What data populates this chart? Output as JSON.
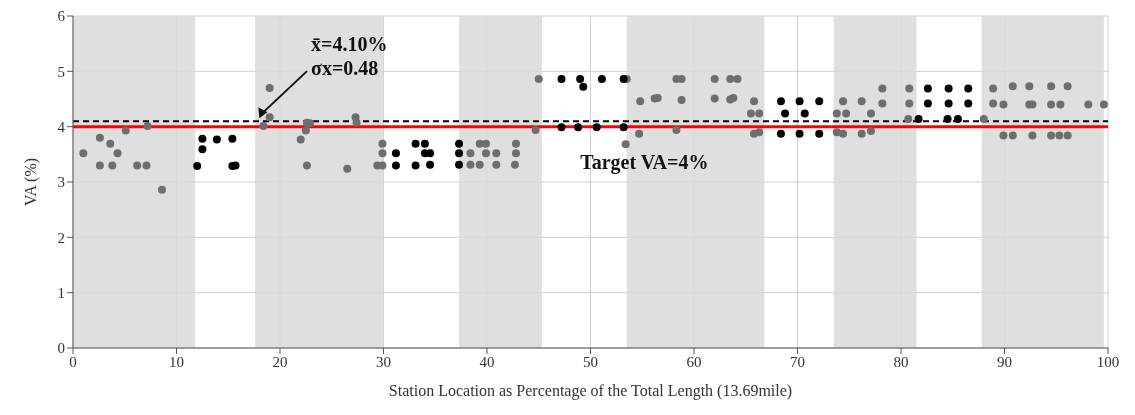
{
  "chart_data": {
    "type": "scatter",
    "xlabel": "Station Location as Percentage of the Total Length (13.69mile)",
    "ylabel": "VA (%)",
    "xlim": [
      0,
      100
    ],
    "xticks": [
      0,
      10,
      20,
      30,
      40,
      50,
      60,
      70,
      80,
      90,
      100
    ],
    "ylim": [
      0,
      6
    ],
    "yticks": [
      0,
      1,
      2,
      3,
      4,
      5,
      6
    ],
    "grid": true,
    "marker": "circle",
    "legend": false,
    "annotations": [
      "σx=0.48"
    ],
    "ref_lines": [
      {
        "axis": "y",
        "value": 4.1,
        "label": "x̄=4.10%",
        "color": "#000000",
        "line_style": "dashed"
      },
      {
        "axis": "y",
        "value": 4,
        "label": "Target VA=4%",
        "color": "#ff0000",
        "line_style": "solid"
      }
    ],
    "bands": [
      {
        "axis": "x",
        "from": 0,
        "to": 11.8,
        "color": "#d9d9d9"
      },
      {
        "axis": "x",
        "from": 17.6,
        "to": 30,
        "color": "#d9d9d9"
      },
      {
        "axis": "x",
        "from": 37.3,
        "to": 45.3,
        "color": "#d9d9d9"
      },
      {
        "axis": "x",
        "from": 53.5,
        "to": 66.8,
        "color": "#d9d9d9"
      },
      {
        "axis": "x",
        "from": 73.5,
        "to": 81.5,
        "color": "#d9d9d9"
      },
      {
        "axis": "x",
        "from": 87.8,
        "to": 99.6,
        "color": "#d9d9d9"
      }
    ],
    "series": [
      {
        "color": "#6e6e6e",
        "x": [
          1.0,
          2.6,
          2.6,
          3.6,
          3.8,
          4.3,
          5.1,
          6.2,
          7.1,
          7.2,
          8.6,
          18.4,
          19.0,
          19.0,
          22.0,
          22.5,
          22.6,
          22.6,
          22.9,
          26.5,
          27.3,
          27.4,
          29.4,
          29.9,
          29.9,
          29.9,
          38.4,
          38.4,
          39.3,
          39.9,
          39.3,
          39.9,
          40.9,
          40.9,
          42.8,
          42.8,
          42.7,
          44.7,
          45.0,
          53.4,
          53.5,
          54.7,
          54.8,
          56.2,
          56.5,
          58.3,
          58.3,
          58.8,
          58.8,
          62.0,
          62.0,
          63.5,
          63.5,
          63.8,
          64.2,
          65.5,
          65.8,
          65.8,
          66.3,
          66.3,
          73.8,
          73.8,
          74.4,
          74.4,
          74.7,
          76.2,
          76.2,
          77.1,
          77.1,
          78.2,
          78.2,
          80.7,
          80.8,
          80.8,
          88.0,
          88.9,
          88.9,
          89.9,
          89.9,
          90.8,
          90.8,
          92.4,
          92.4,
          92.7,
          92.7,
          94.5,
          94.5,
          94.5,
          95.3,
          95.4,
          96.1,
          96.1,
          98.1,
          99.6
        ],
        "values": [
          3.52,
          3.8,
          3.3,
          3.69,
          3.3,
          3.52,
          3.93,
          3.3,
          3.3,
          4.01,
          2.86,
          4.01,
          4.17,
          4.7,
          3.77,
          3.93,
          4.07,
          3.3,
          4.06,
          3.24,
          4.17,
          4.07,
          3.3,
          3.3,
          3.52,
          3.69,
          3.52,
          3.31,
          3.69,
          3.69,
          3.31,
          3.52,
          3.52,
          3.31,
          3.69,
          3.52,
          3.31,
          3.94,
          4.86,
          3.68,
          4.86,
          3.87,
          4.46,
          4.51,
          4.52,
          4.86,
          3.94,
          4.86,
          4.48,
          4.86,
          4.51,
          4.86,
          4.49,
          4.52,
          4.86,
          4.24,
          4.46,
          3.87,
          4.24,
          3.9,
          4.24,
          3.9,
          4.46,
          3.87,
          4.24,
          4.46,
          3.87,
          4.24,
          3.92,
          4.69,
          4.42,
          4.14,
          4.69,
          4.42,
          4.14,
          4.69,
          4.42,
          4.4,
          3.84,
          4.73,
          3.84,
          4.73,
          4.4,
          4.4,
          3.84,
          4.73,
          4.4,
          3.84,
          3.84,
          4.4,
          4.73,
          3.84,
          4.4,
          4.4
        ]
      },
      {
        "color": "#000000",
        "x": [
          12.0,
          12.5,
          12.5,
          13.9,
          15.4,
          15.4,
          15.7,
          31.2,
          31.2,
          33.1,
          33.1,
          34.0,
          34.0,
          34.5,
          34.5,
          37.3,
          37.3,
          37.3,
          47.2,
          47.2,
          48.8,
          49.0,
          49.3,
          50.6,
          51.1,
          53.2,
          53.2,
          68.4,
          68.4,
          68.8,
          70.2,
          70.2,
          70.7,
          72.1,
          72.1,
          81.7,
          82.6,
          82.6,
          84.5,
          84.6,
          84.6,
          85.5,
          86.5,
          86.5
        ],
        "values": [
          3.29,
          3.78,
          3.59,
          3.77,
          3.78,
          3.29,
          3.3,
          3.52,
          3.3,
          3.69,
          3.3,
          3.69,
          3.52,
          3.52,
          3.31,
          3.69,
          3.52,
          3.31,
          4.86,
          3.99,
          3.99,
          4.86,
          4.72,
          3.99,
          4.86,
          4.86,
          3.99,
          4.46,
          3.87,
          4.24,
          4.46,
          3.87,
          4.24,
          4.46,
          3.87,
          4.14,
          4.69,
          4.42,
          4.14,
          4.69,
          4.42,
          4.14,
          4.69,
          4.42
        ]
      }
    ]
  }
}
